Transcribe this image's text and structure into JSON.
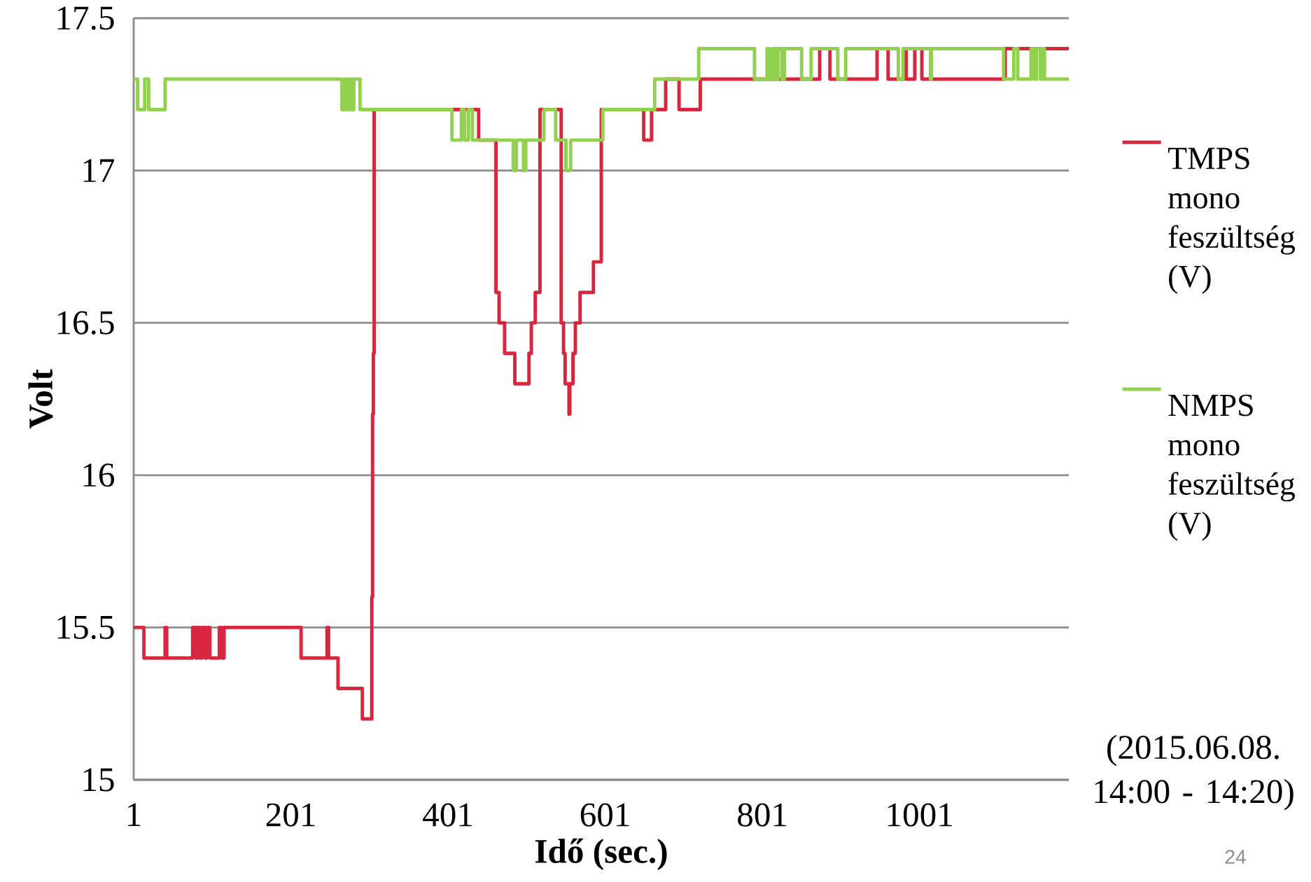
{
  "chart_data": {
    "type": "step",
    "xlabel": "Idő (sec.)",
    "ylabel": "Volt",
    "xlim": [
      1,
      1191
    ],
    "ylim": [
      15,
      17.5
    ],
    "xticks": [
      1,
      201,
      401,
      601,
      801,
      1001
    ],
    "yticks": [
      15,
      15.5,
      16,
      16.5,
      17,
      17.5
    ],
    "grid": "y",
    "legend": "right",
    "annotations": [
      "(2015.06.08. 14:00 - 14:20)",
      "24"
    ],
    "series": [
      {
        "name": "TMPS mono feszültség (V)",
        "color": "#d9263f",
        "x": [
          1,
          14,
          41,
          43,
          76,
          80,
          82,
          85,
          88,
          92,
          94,
          98,
          110,
          113,
          116,
          214,
          247,
          249,
          261,
          292,
          304,
          305,
          306,
          307,
          440,
          462,
          466,
          473,
          486,
          504,
          507,
          512,
          518,
          545,
          548,
          550,
          555,
          556,
          560,
          563,
          569,
          586,
          596,
          650,
          660,
          678,
          695,
          722,
          874,
          887,
          947,
          961,
          981,
          984,
          995,
          1004,
          1110,
          1191
        ],
        "values": [
          15.5,
          15.4,
          15.5,
          15.4,
          15.5,
          15.4,
          15.5,
          15.4,
          15.5,
          15.4,
          15.5,
          15.4,
          15.5,
          15.4,
          15.5,
          15.4,
          15.5,
          15.4,
          15.3,
          15.2,
          15.6,
          16.2,
          16.4,
          17.2,
          17.1,
          16.6,
          16.5,
          16.4,
          16.3,
          16.4,
          16.5,
          16.6,
          17.2,
          16.5,
          16.4,
          16.3,
          16.2,
          16.3,
          16.4,
          16.5,
          16.6,
          16.7,
          17.2,
          17.1,
          17.2,
          17.3,
          17.2,
          17.3,
          17.4,
          17.3,
          17.4,
          17.3,
          17.4,
          17.3,
          17.4,
          17.3,
          17.4,
          17.4
        ]
      },
      {
        "name": "NMPS mono feszültség (V)",
        "color": "#92d050",
        "x": [
          1,
          6,
          15,
          20,
          41,
          266,
          269,
          272,
          275,
          278,
          281,
          289,
          406,
          418,
          422,
          427,
          432,
          484,
          488,
          497,
          500,
          523,
          538,
          551,
          557,
          598,
          664,
          720,
          791,
          807,
          810,
          814,
          818,
          821,
          826,
          829,
          851,
          863,
          897,
          907,
          974,
          980,
          1015,
          1016,
          1108,
          1121,
          1126,
          1143,
          1147,
          1150,
          1155,
          1157,
          1160,
          1191
        ],
        "values": [
          17.3,
          17.2,
          17.3,
          17.2,
          17.3,
          17.2,
          17.3,
          17.2,
          17.3,
          17.2,
          17.3,
          17.2,
          17.1,
          17.2,
          17.1,
          17.2,
          17.1,
          17.0,
          17.1,
          17.0,
          17.1,
          17.2,
          17.1,
          17.0,
          17.1,
          17.2,
          17.3,
          17.4,
          17.3,
          17.4,
          17.3,
          17.4,
          17.3,
          17.4,
          17.3,
          17.4,
          17.3,
          17.4,
          17.3,
          17.4,
          17.3,
          17.4,
          17.3,
          17.4,
          17.3,
          17.4,
          17.3,
          17.4,
          17.3,
          17.4,
          17.3,
          17.4,
          17.3,
          17.3
        ]
      }
    ]
  }
}
